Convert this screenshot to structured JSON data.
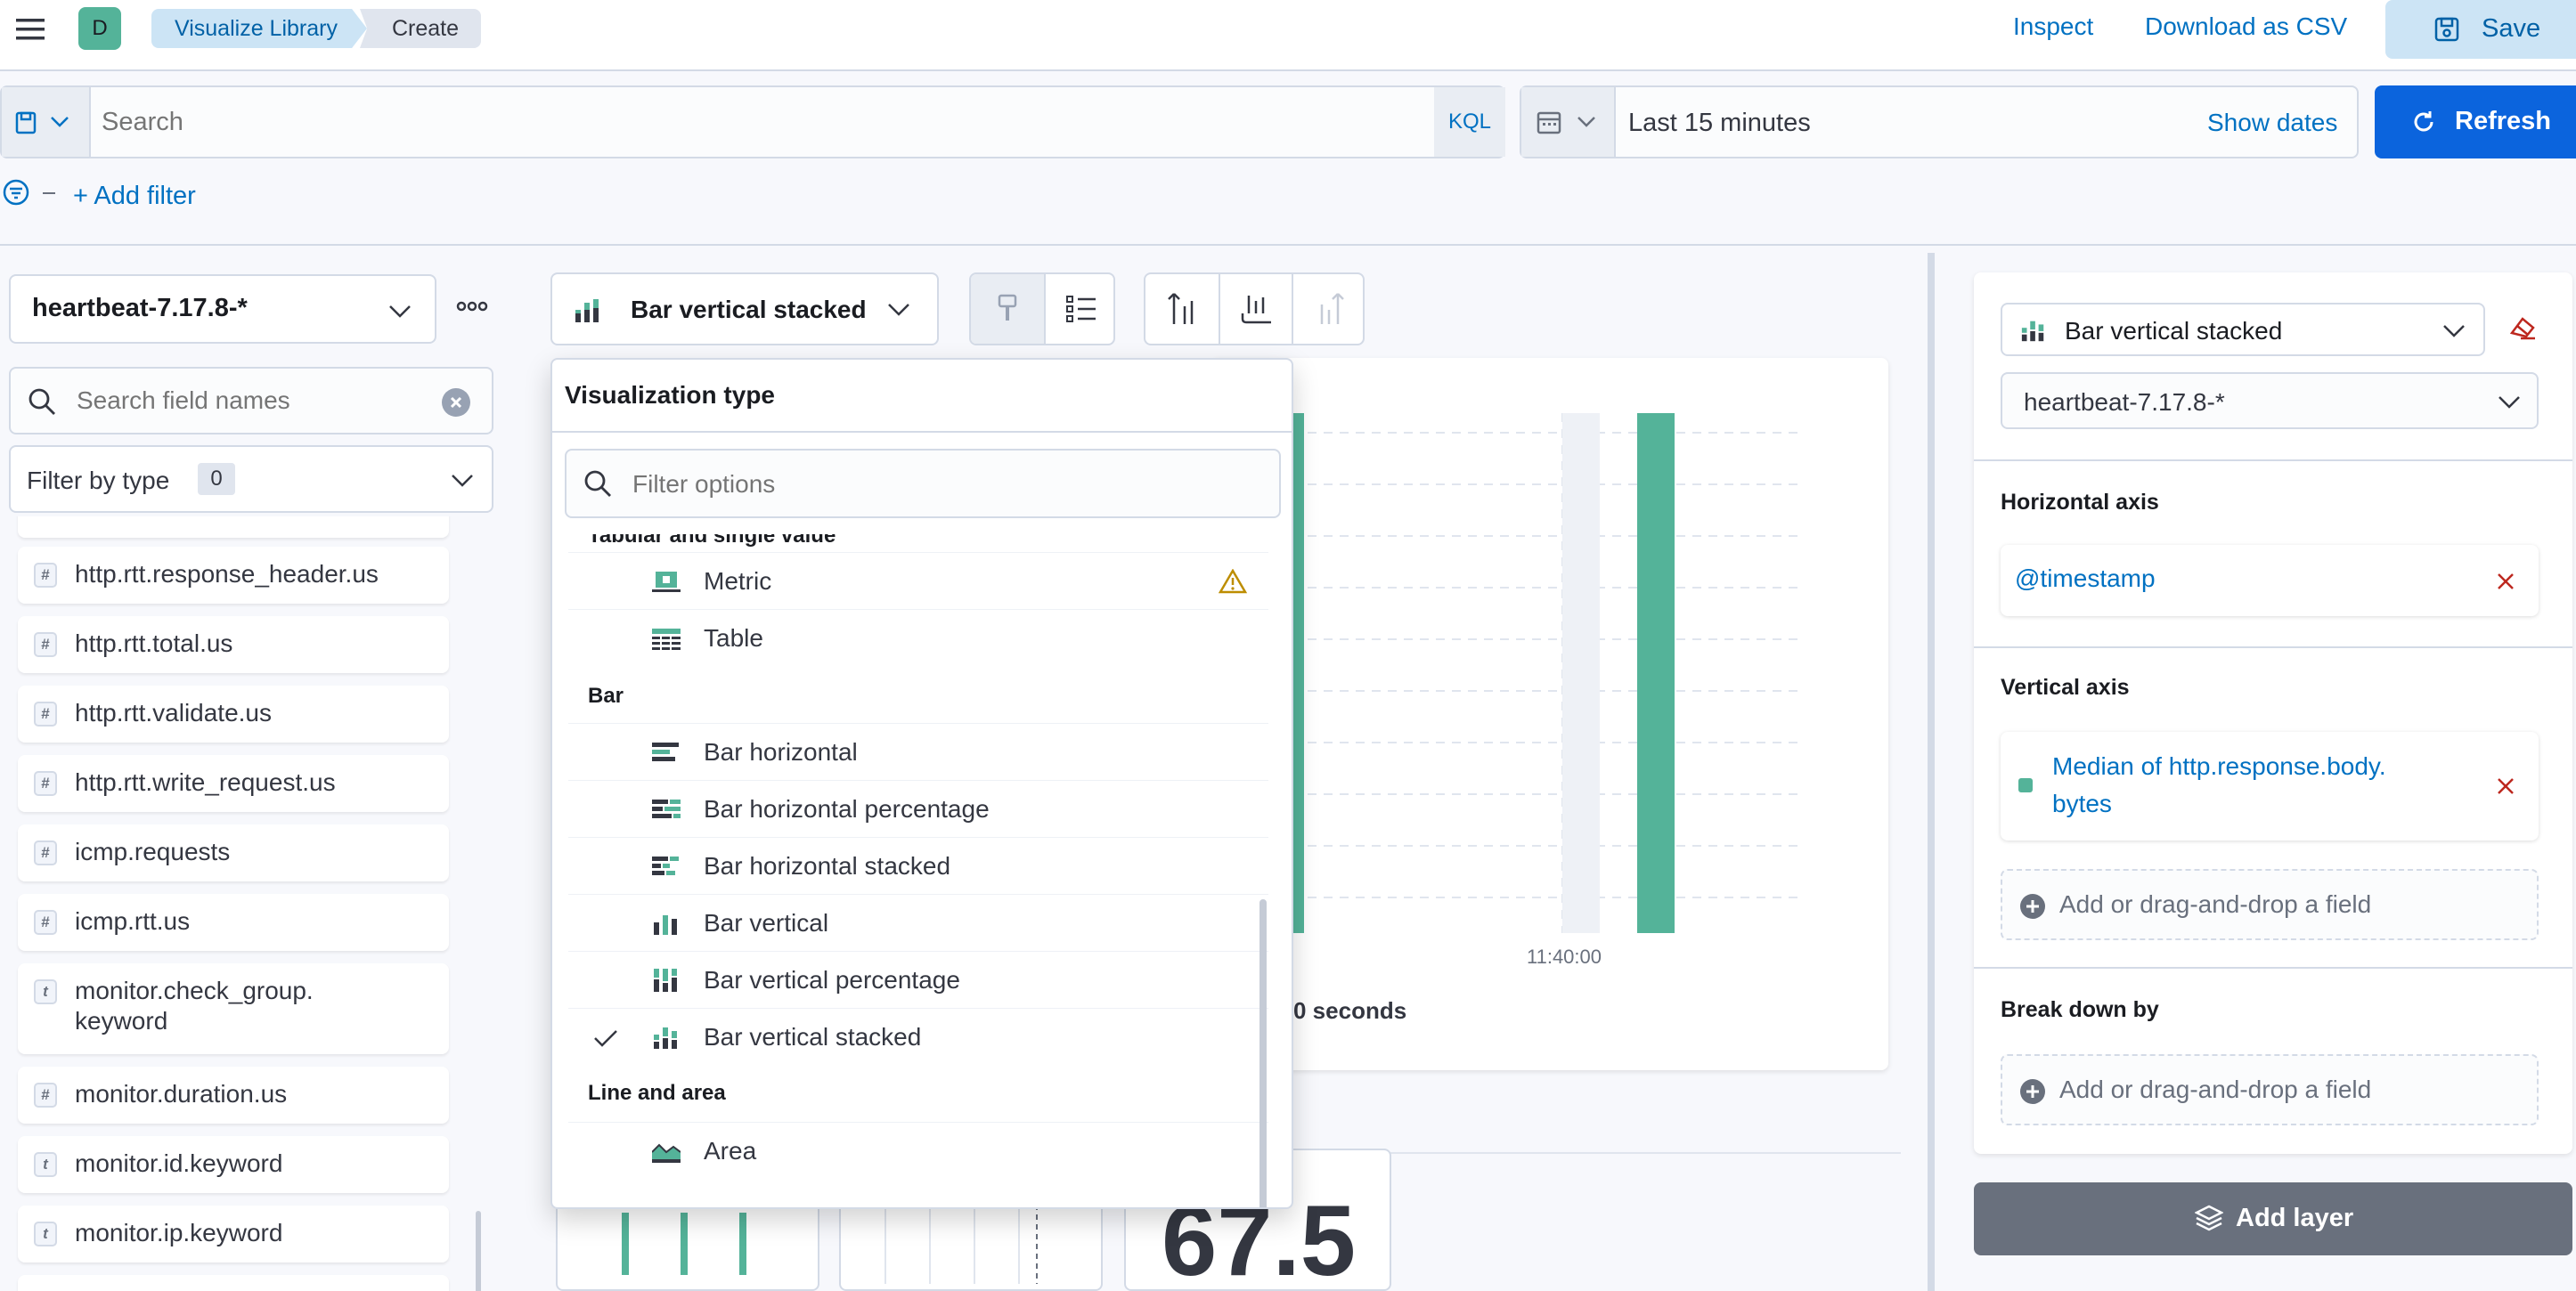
{
  "breadcrumbs": {
    "avatar": "D",
    "library": "Visualize Library",
    "current": "Create"
  },
  "header": {
    "inspect": "Inspect",
    "download_csv": "Download as CSV",
    "save": "Save"
  },
  "query": {
    "placeholder": "Search",
    "language": "KQL"
  },
  "time": {
    "range": "Last 15 minutes",
    "show_dates": "Show dates",
    "refresh": "Refresh"
  },
  "filters": {
    "add_filter": "+ Add filter"
  },
  "left_panel": {
    "index_pattern": "heartbeat-7.17.8-*",
    "search_placeholder": "Search field names",
    "filter_by_type": "Filter by type",
    "filter_count": "0",
    "fields": [
      {
        "type": "#",
        "name": "http.rtt.response_header.us"
      },
      {
        "type": "#",
        "name": "http.rtt.total.us"
      },
      {
        "type": "#",
        "name": "http.rtt.validate.us"
      },
      {
        "type": "#",
        "name": "http.rtt.write_request.us"
      },
      {
        "type": "#",
        "name": "icmp.requests"
      },
      {
        "type": "#",
        "name": "icmp.rtt.us"
      },
      {
        "type": "t",
        "name": "monitor.check_group.\nkeyword"
      },
      {
        "type": "#",
        "name": "monitor.duration.us"
      },
      {
        "type": "t",
        "name": "monitor.id.keyword"
      },
      {
        "type": "t",
        "name": "monitor.ip.keyword"
      }
    ]
  },
  "toolbar": {
    "chart_type": "Bar vertical stacked"
  },
  "dropdown": {
    "title": "Visualization type",
    "filter_placeholder": "Filter options",
    "partial_group": "Tabular and single value",
    "options": [
      {
        "label": "Metric",
        "icon": "metric-icon"
      },
      {
        "label": "Table",
        "icon": "table-icon"
      },
      {
        "group": "Bar"
      },
      {
        "label": "Bar horizontal",
        "icon": "bar-horizontal-icon"
      },
      {
        "label": "Bar horizontal percentage",
        "icon": "bar-horizontal-percentage-icon"
      },
      {
        "label": "Bar horizontal stacked",
        "icon": "bar-horizontal-stacked-icon"
      },
      {
        "label": "Bar vertical",
        "icon": "bar-vertical-icon"
      },
      {
        "label": "Bar vertical percentage",
        "icon": "bar-vertical-percentage-icon"
      },
      {
        "label": "Bar vertical stacked",
        "icon": "bar-vertical-stacked-icon",
        "selected": true
      },
      {
        "group": "Line and area"
      },
      {
        "label": "Area",
        "icon": "area-icon"
      }
    ]
  },
  "chart": {
    "x_tick": "11:40:00",
    "x_label_partial": "0 seconds",
    "bar_color": "#54b399"
  },
  "suggestion": {
    "metric_value": "67.5"
  },
  "right_panel": {
    "chart_type": "Bar vertical stacked",
    "index_pattern": "heartbeat-7.17.8-*",
    "horizontal_axis": "Horizontal axis",
    "horizontal_field": "@timestamp",
    "vertical_axis": "Vertical axis",
    "vertical_field": "Median of http.response.body.\nbytes",
    "add_field": "Add or drag-and-drop a field",
    "break_down_by": "Break down by",
    "add_layer": "Add layer"
  }
}
